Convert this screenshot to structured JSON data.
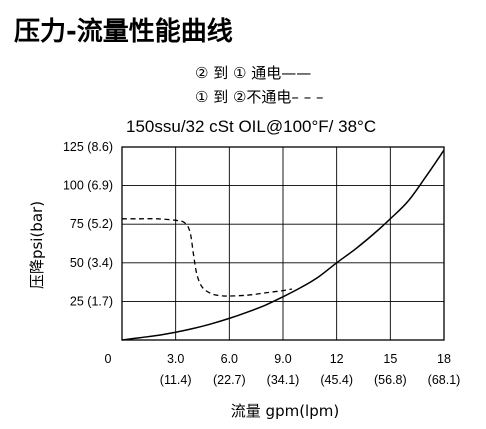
{
  "chart_data": {
    "type": "line",
    "title": "压力-流量性能曲线",
    "subtitle": "150ssu/32 cSt OIL@100°F/ 38°C",
    "xlabel": "流量 gpm(lpm)",
    "ylabel": "压降psi(bar)",
    "xlim": [
      0,
      18
    ],
    "ylim": [
      0,
      125
    ],
    "x_ticks": [
      {
        "value": 0,
        "label": "0",
        "sublabel": ""
      },
      {
        "value": 3,
        "label": "3.0",
        "sublabel": "(11.4)"
      },
      {
        "value": 6,
        "label": "6.0",
        "sublabel": "(22.7)"
      },
      {
        "value": 9,
        "label": "9.0",
        "sublabel": "(34.1)"
      },
      {
        "value": 12,
        "label": "12",
        "sublabel": "(45.4)"
      },
      {
        "value": 15,
        "label": "15",
        "sublabel": "(56.8)"
      },
      {
        "value": 18,
        "label": "18",
        "sublabel": "(68.1)"
      }
    ],
    "y_ticks": [
      {
        "value": 25,
        "label": "25 (1.7)"
      },
      {
        "value": 50,
        "label": "50 (3.4)"
      },
      {
        "value": 75,
        "label": "75 (5.2)"
      },
      {
        "value": 100,
        "label": "100 (6.9)"
      },
      {
        "value": 125,
        "label": "125 (8.6)"
      }
    ],
    "grid": true,
    "series": [
      {
        "name": "② 到 ① 通电——",
        "style": "solid",
        "x": [
          0,
          1,
          2,
          3,
          4,
          5,
          6,
          7,
          8,
          9,
          10,
          11,
          12,
          13,
          14,
          15,
          16,
          17,
          18
        ],
        "y": [
          0,
          1.5,
          3,
          5,
          7.5,
          10.5,
          14,
          18,
          22.5,
          28,
          34,
          41,
          50,
          58.5,
          68,
          78.5,
          90,
          106,
          123
        ]
      },
      {
        "name": "① 到 ②不通电– – –",
        "style": "dashed",
        "x": [
          0,
          1,
          2,
          3,
          3.5,
          3.8,
          4.0,
          4.2,
          4.5,
          5,
          5.5,
          6,
          7,
          8,
          9,
          9.5
        ],
        "y": [
          78.5,
          78.5,
          78.5,
          77.5,
          76,
          70,
          55,
          42,
          34,
          30,
          28.7,
          28.5,
          29,
          30.5,
          32,
          33
        ]
      }
    ]
  }
}
